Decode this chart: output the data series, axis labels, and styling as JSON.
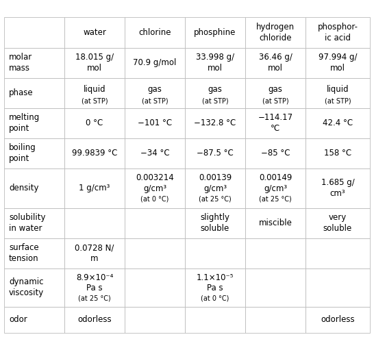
{
  "columns": [
    "",
    "water",
    "chlorine",
    "phosphine",
    "hydrogen\nchloride",
    "phosphor-\nic acid"
  ],
  "rows": [
    {
      "label": "molar\nmass",
      "values": [
        {
          "main": "18.015 g/\nmol",
          "sub": ""
        },
        {
          "main": "70.9 g/mol",
          "sub": ""
        },
        {
          "main": "33.998 g/\nmol",
          "sub": ""
        },
        {
          "main": "36.46 g/\nmol",
          "sub": ""
        },
        {
          "main": "97.994 g/\nmol",
          "sub": ""
        }
      ]
    },
    {
      "label": "phase",
      "values": [
        {
          "main": "liquid",
          "sub": "(at STP)"
        },
        {
          "main": "gas",
          "sub": "(at STP)"
        },
        {
          "main": "gas",
          "sub": "(at STP)"
        },
        {
          "main": "gas",
          "sub": "(at STP)"
        },
        {
          "main": "liquid",
          "sub": "(at STP)"
        }
      ]
    },
    {
      "label": "melting\npoint",
      "values": [
        {
          "main": "0 °C",
          "sub": ""
        },
        {
          "main": "−101 °C",
          "sub": ""
        },
        {
          "main": "−132.8 °C",
          "sub": ""
        },
        {
          "main": "−114.17\n°C",
          "sub": ""
        },
        {
          "main": "42.4 °C",
          "sub": ""
        }
      ]
    },
    {
      "label": "boiling\npoint",
      "values": [
        {
          "main": "99.9839 °C",
          "sub": ""
        },
        {
          "main": "−34 °C",
          "sub": ""
        },
        {
          "main": "−87.5 °C",
          "sub": ""
        },
        {
          "main": "−85 °C",
          "sub": ""
        },
        {
          "main": "158 °C",
          "sub": ""
        }
      ]
    },
    {
      "label": "density",
      "values": [
        {
          "main": "1 g/cm³",
          "sub": ""
        },
        {
          "main": "0.003214\ng/cm³",
          "sub": "(at 0 °C)"
        },
        {
          "main": "0.00139\ng/cm³",
          "sub": "(at 25 °C)"
        },
        {
          "main": "0.00149\ng/cm³",
          "sub": "(at 25 °C)"
        },
        {
          "main": "1.685 g/\ncm³",
          "sub": ""
        }
      ]
    },
    {
      "label": "solubility\nin water",
      "values": [
        {
          "main": "",
          "sub": ""
        },
        {
          "main": "",
          "sub": ""
        },
        {
          "main": "slightly\nsoluble",
          "sub": ""
        },
        {
          "main": "miscible",
          "sub": ""
        },
        {
          "main": "very\nsoluble",
          "sub": ""
        }
      ]
    },
    {
      "label": "surface\ntension",
      "values": [
        {
          "main": "0.0728 N/\nm",
          "sub": ""
        },
        {
          "main": "",
          "sub": ""
        },
        {
          "main": "",
          "sub": ""
        },
        {
          "main": "",
          "sub": ""
        },
        {
          "main": "",
          "sub": ""
        }
      ]
    },
    {
      "label": "dynamic\nviscosity",
      "values": [
        {
          "main": "8.9×10⁻⁴\nPa s",
          "sub": "(at 25 °C)"
        },
        {
          "main": "",
          "sub": ""
        },
        {
          "main": "1.1×10⁻⁵\nPa s",
          "sub": "(at 0 °C)"
        },
        {
          "main": "",
          "sub": ""
        },
        {
          "main": "",
          "sub": ""
        }
      ]
    },
    {
      "label": "odor",
      "values": [
        {
          "main": "odorless",
          "sub": ""
        },
        {
          "main": "",
          "sub": ""
        },
        {
          "main": "",
          "sub": ""
        },
        {
          "main": "",
          "sub": ""
        },
        {
          "main": "odorless",
          "sub": ""
        }
      ]
    }
  ],
  "bg_color": "#ffffff",
  "border_color": "#bbbbbb",
  "text_color": "#000000",
  "header_fontsize": 8.5,
  "cell_fontsize": 8.5,
  "small_fontsize": 7.0,
  "fig_width": 5.46,
  "fig_height": 5.11,
  "dpi": 100
}
